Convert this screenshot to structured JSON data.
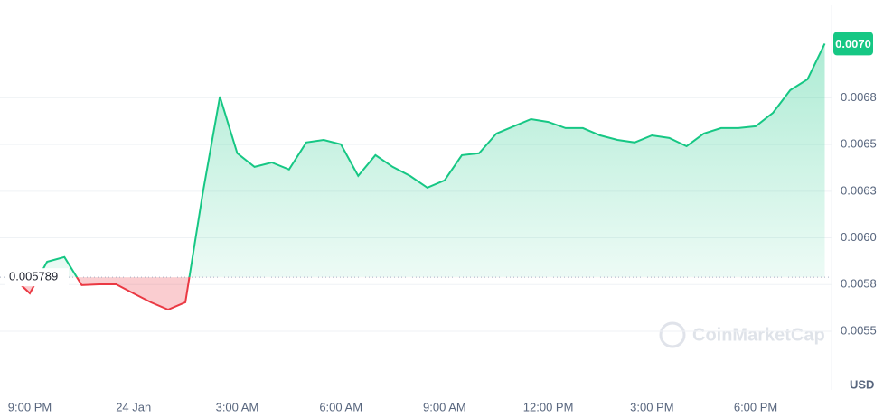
{
  "chart_data": {
    "type": "line",
    "categories": [
      null,
      "9:00 PM",
      null,
      null,
      null,
      null,
      null,
      "24 Jan",
      null,
      null,
      null,
      null,
      null,
      "3:00 AM",
      null,
      null,
      null,
      null,
      null,
      "6:00 AM",
      null,
      null,
      null,
      null,
      null,
      "9:00 AM",
      null,
      null,
      null,
      null,
      null,
      "12:00 PM",
      null,
      null,
      null,
      null,
      null,
      "3:00 PM",
      null,
      null,
      null,
      null,
      null,
      "6:00 PM",
      null,
      null,
      null,
      null
    ],
    "values": [
      0.005791,
      0.005703,
      0.005872,
      0.005897,
      0.005747,
      0.005751,
      0.005751,
      0.005703,
      0.005655,
      0.005616,
      0.005655,
      0.006235,
      0.006757,
      0.006453,
      0.00638,
      0.006404,
      0.006366,
      0.006511,
      0.006525,
      0.006501,
      0.006332,
      0.006443,
      0.00638,
      0.006332,
      0.006269,
      0.006308,
      0.006443,
      0.006453,
      0.006559,
      0.006598,
      0.006636,
      0.006621,
      0.006588,
      0.006588,
      0.006549,
      0.006525,
      0.006511,
      0.006549,
      0.006535,
      0.006491,
      0.006559,
      0.006588,
      0.006588,
      0.006598,
      0.00667,
      0.006791,
      0.006849,
      0.00704
    ],
    "color": "#16c784",
    "color_below": "#ea3943",
    "baseline": 0.005789,
    "current_price_label": "0.0070",
    "ylim": [
      0.0052,
      0.00725
    ],
    "yticks": [
      0.0055,
      {
        "value": 0.00575,
        "label": "0.0058"
      },
      {
        "value": 0.006,
        "label": "0.0060"
      },
      {
        "value": 0.00625,
        "label": "0.0063"
      },
      {
        "value": 0.0065,
        "label": "0.0065"
      },
      {
        "value": 0.00675,
        "label": "0.0068"
      }
    ],
    "currency": "USD",
    "watermark": "CoinMarketCap",
    "grid": true
  }
}
